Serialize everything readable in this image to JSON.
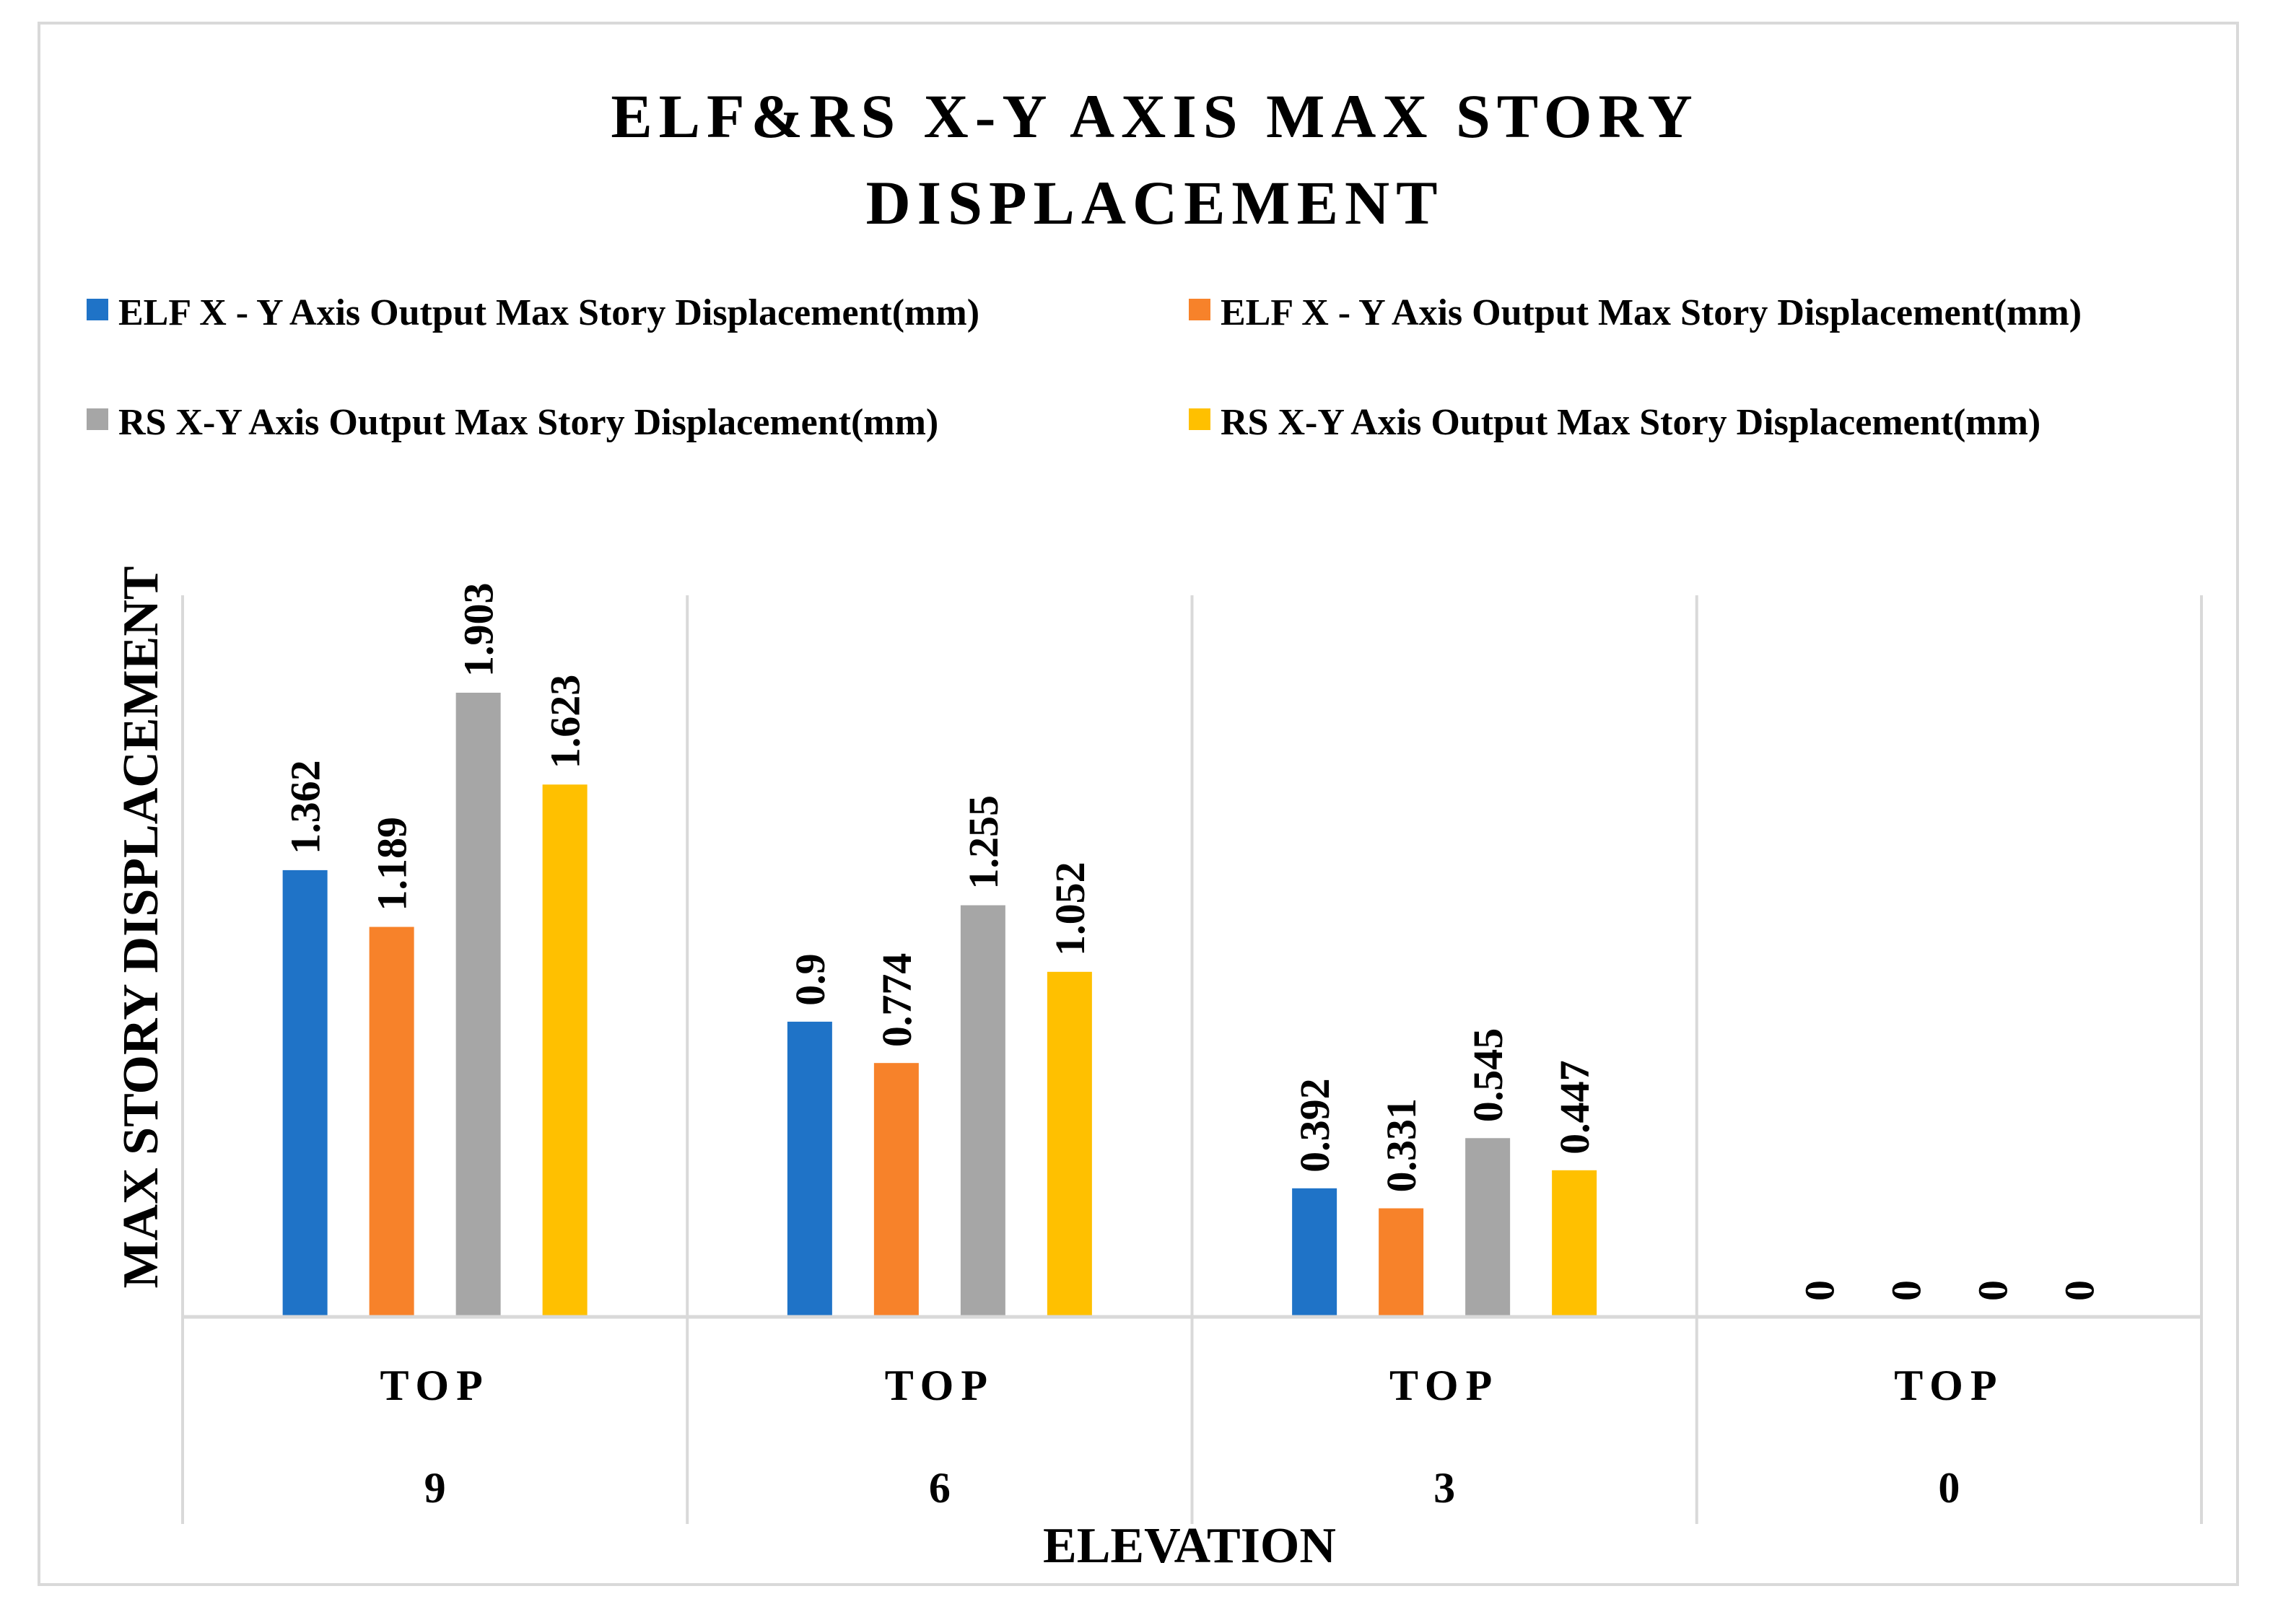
{
  "chart_data": {
    "type": "bar",
    "title_lines": [
      "ELF&RS X-Y AXIS MAX STORY",
      "DISPLACEMENT"
    ],
    "xlabel": "ELEVATION",
    "ylabel": "MAX STORY DISPLACEMENT",
    "ylim": [
      0,
      2.2
    ],
    "grid": false,
    "legend_position": "top",
    "categories": [
      {
        "label": "TOP",
        "elevation": "9"
      },
      {
        "label": "TOP",
        "elevation": "6"
      },
      {
        "label": "TOP",
        "elevation": "3"
      },
      {
        "label": "TOP",
        "elevation": "0"
      }
    ],
    "series": [
      {
        "name": "ELF X - Y Axis Output Max Story Displacement(mm)",
        "color": "#1f73c7",
        "values": [
          1.362,
          0.9,
          0.392,
          0
        ],
        "labels": [
          "1.362",
          "0.9",
          "0.392",
          "0"
        ]
      },
      {
        "name": "ELF X - Y Axis Output Max Story Displacement(mm)",
        "color": "#f7822a",
        "values": [
          1.189,
          0.774,
          0.331,
          0
        ],
        "labels": [
          "1.189",
          "0.774",
          "0.331",
          "0"
        ]
      },
      {
        "name": "RS X-Y Axis Output Max Story Displacement(mm)",
        "color": "#a6a6a6",
        "values": [
          1.903,
          1.255,
          0.545,
          0
        ],
        "labels": [
          "1.903",
          "1.255",
          "0.545",
          "0"
        ]
      },
      {
        "name": "RS X-Y Axis Output Max Story Displacement(mm)",
        "color": "#ffc000",
        "values": [
          1.623,
          1.052,
          0.447,
          0
        ],
        "labels": [
          "1.623",
          "1.052",
          "0.447",
          "0"
        ]
      }
    ]
  }
}
